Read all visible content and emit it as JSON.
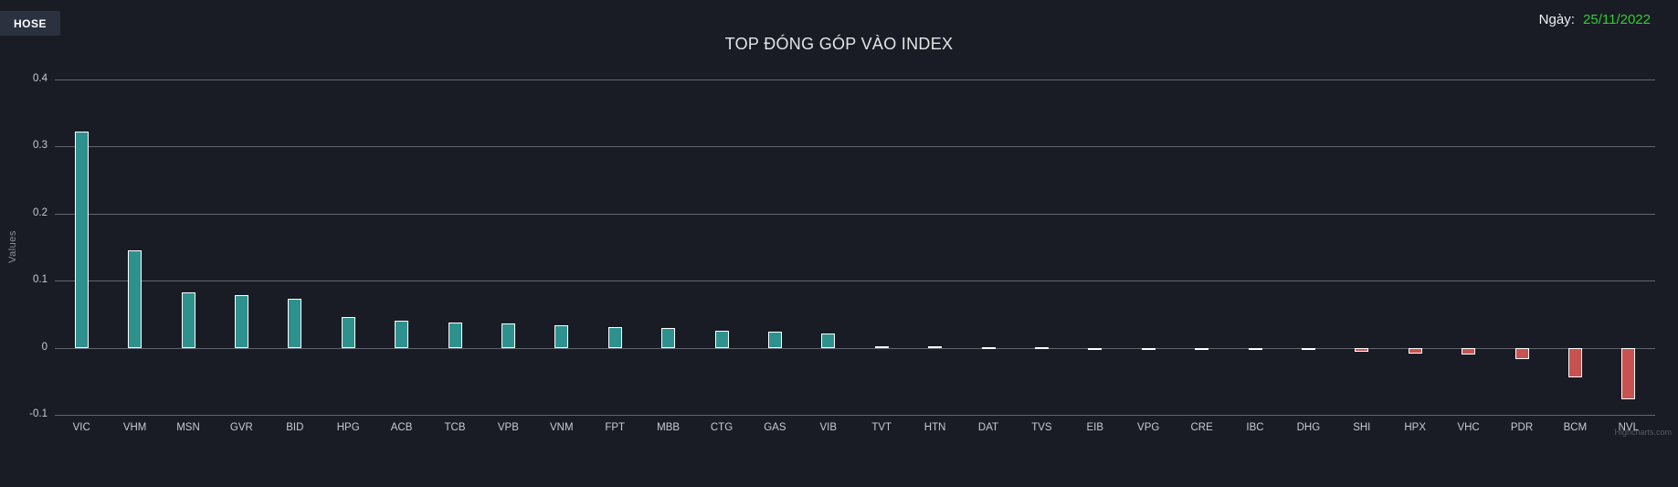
{
  "header": {
    "exchange_button": "HOSE",
    "date_label": "Ngày:",
    "date_value": "25/11/2022",
    "date_value_color": "#32cd32"
  },
  "chart_data": {
    "type": "bar",
    "title": "TOP ĐÓNG GÓP VÀO INDEX",
    "xlabel": "",
    "ylabel": "Values",
    "ylim": [
      -0.1,
      0.4
    ],
    "yticks": [
      0.4,
      0.3,
      0.2,
      0.1,
      0,
      -0.1
    ],
    "grid": true,
    "legend": false,
    "categories": [
      "VIC",
      "VHM",
      "MSN",
      "GVR",
      "BID",
      "HPG",
      "ACB",
      "TCB",
      "VPB",
      "VNM",
      "FPT",
      "MBB",
      "CTG",
      "GAS",
      "VIB",
      "TVT",
      "HTN",
      "DAT",
      "TVS",
      "EIB",
      "VPG",
      "CRE",
      "IBC",
      "DHG",
      "SHI",
      "HPX",
      "VHC",
      "PDR",
      "BCM",
      "NVL"
    ],
    "values": [
      0.322,
      0.145,
      0.083,
      0.079,
      0.073,
      0.046,
      0.041,
      0.038,
      0.036,
      0.033,
      0.031,
      0.03,
      0.025,
      0.024,
      0.022,
      0.002,
      0.002,
      0.001,
      0.001,
      -0.002,
      -0.002,
      -0.003,
      -0.003,
      -0.004,
      -0.006,
      -0.009,
      -0.01,
      -0.017,
      -0.044,
      -0.077
    ],
    "positive_color": "#2f918e",
    "negative_color": "#c85250",
    "bar_border_color": "#ffffff"
  },
  "watermark": "Highcharts.com"
}
